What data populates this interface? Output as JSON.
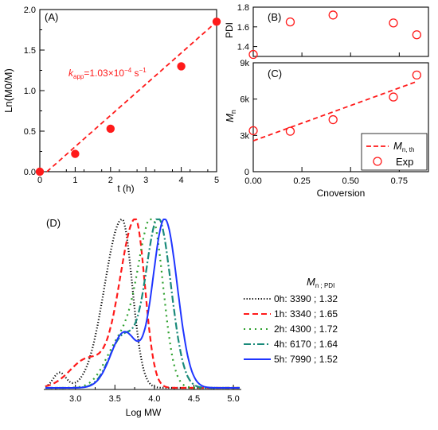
{
  "colors": {
    "red": "#ff1a1a",
    "black": "#000000",
    "green": "#2ea12e",
    "teal": "#1a8a7a",
    "blue": "#1f35ff"
  },
  "chart_data": [
    {
      "panel": "(A)",
      "type": "scatter",
      "xlabel": "t (h)",
      "ylabel": "Ln(M0/M)",
      "xlim": [
        0,
        5
      ],
      "ylim": [
        0,
        2.0
      ],
      "xticks": [
        "0",
        "1",
        "2",
        "3",
        "4",
        "5"
      ],
      "yticks": [
        "0.0",
        "0.5",
        "1.0",
        "1.5",
        "2.0"
      ],
      "points": [
        {
          "x": 0,
          "y": 0.0
        },
        {
          "x": 1,
          "y": 0.22
        },
        {
          "x": 2,
          "y": 0.53
        },
        {
          "x": 4,
          "y": 1.3
        },
        {
          "x": 5,
          "y": 1.85
        }
      ],
      "fit_line": {
        "x": [
          0.2,
          5
        ],
        "y": [
          0,
          1.85
        ],
        "style": "dashed"
      },
      "annotation": {
        "k_symbol": "k",
        "k_subscript": "app",
        "k_value": "=1.03×10",
        "k_exponent": "−4",
        "k_unit": " s",
        "k_unit_exponent": "−1"
      }
    },
    {
      "panel": "(B)",
      "type": "scatter",
      "ylabel": "PDI",
      "xlim": [
        0,
        0.9
      ],
      "ylim": [
        1.3,
        1.8
      ],
      "yticks": [
        "1.4",
        "1.6",
        "1.8"
      ],
      "points": [
        {
          "x": 0.0,
          "y": 1.32
        },
        {
          "x": 0.19,
          "y": 1.65
        },
        {
          "x": 0.41,
          "y": 1.72
        },
        {
          "x": 0.72,
          "y": 1.64
        },
        {
          "x": 0.84,
          "y": 1.52
        }
      ]
    },
    {
      "panel": "(C)",
      "type": "scatter",
      "xlabel": "Cnoversion",
      "ylabel_main": "M",
      "ylabel_sub": "n",
      "xlim": [
        0,
        0.9
      ],
      "ylim": [
        0,
        9000
      ],
      "xticks": [
        "0.00",
        "0.25",
        "0.50",
        "0.75"
      ],
      "yticks": [
        "0",
        "3k",
        "6k",
        "9k"
      ],
      "series": [
        {
          "name": "Exp",
          "x": [
            0.0,
            0.19,
            0.41,
            0.72,
            0.84
          ],
          "y": [
            3390,
            3340,
            4300,
            6170,
            7990
          ]
        },
        {
          "name_main": "M",
          "name_sub": "n, th",
          "x": [
            0.0,
            0.84
          ],
          "y": [
            2550,
            7450
          ],
          "style": "dashed"
        }
      ],
      "legend": {
        "position": "bottom-right"
      }
    },
    {
      "panel": "(D)",
      "type": "line",
      "xlabel": "Log MW",
      "xlim": [
        2.6,
        5.1
      ],
      "xticks": [
        "3.0",
        "3.5",
        "4.0",
        "4.5",
        "5.0"
      ],
      "legend_header_main": "M",
      "legend_header_rest": "n ; PDI",
      "series": [
        {
          "name": "0h: 3390 ; 1.32",
          "color": "black",
          "dash": "1.2,2.4",
          "peak": 3.59,
          "sigma_left": 0.22,
          "sigma_right": 0.13,
          "shoulder": [
            2.8,
            0.09,
            0.08
          ]
        },
        {
          "name": "1h: 3340 ; 1.65",
          "color": "red",
          "dash": "7,4",
          "peak": 3.76,
          "sigma_left": 0.2,
          "sigma_right": 0.12,
          "shoulder": [
            3.15,
            0.17,
            0.22
          ]
        },
        {
          "name": "2h: 4300 ; 1.72",
          "color": "green",
          "dash": "2,5",
          "peak": 3.97,
          "sigma_left": 0.18,
          "sigma_right": 0.14,
          "shoulder": [
            3.55,
            0.25,
            0.18
          ]
        },
        {
          "name": "4h: 6170 ; 1.64",
          "color": "teal",
          "dash": "9,3,2,3",
          "peak": 4.05,
          "sigma_left": 0.16,
          "sigma_right": 0.16,
          "shoulder": [
            3.6,
            0.3,
            0.17
          ]
        },
        {
          "name": "5h: 7990 ; 1.52",
          "color": "blue",
          "dash": "",
          "peak": 4.13,
          "sigma_left": 0.15,
          "sigma_right": 0.16,
          "shoulder": [
            3.62,
            0.33,
            0.17
          ]
        }
      ]
    }
  ]
}
